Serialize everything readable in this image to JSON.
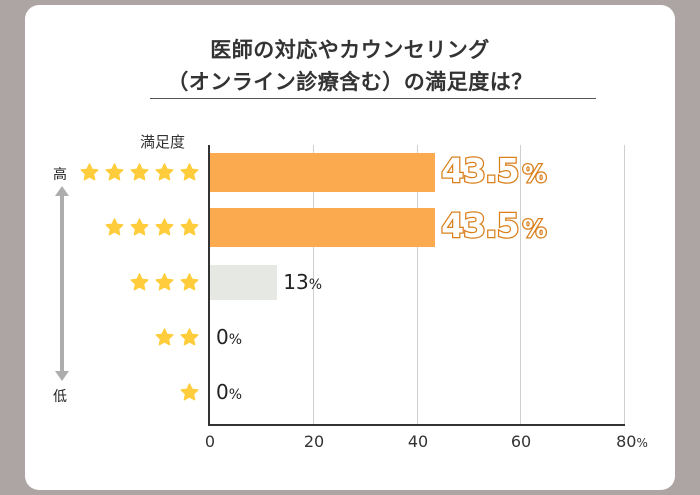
{
  "title": {
    "line1": "医師の対応やカウンセリング",
    "line2": "（オンライン診療含む）の満足度は？"
  },
  "axis": {
    "ylabel": "満足度",
    "high_label": "高",
    "low_label": "低",
    "xticks": [
      "0",
      "20",
      "40",
      "60",
      "80"
    ],
    "xtick_unit": "%"
  },
  "colors": {
    "highlight_bar": "#FBAA50",
    "normal_bar": "#E6E8E3",
    "highlight_text_stroke": "#D97F1C",
    "star": "#FFCD3C",
    "background": "#ADA4A4"
  },
  "rows": [
    {
      "stars": 5,
      "value": "43.5",
      "unit": "%"
    },
    {
      "stars": 4,
      "value": "43.5",
      "unit": "%"
    },
    {
      "stars": 3,
      "value": "13",
      "unit": "%"
    },
    {
      "stars": 2,
      "value": "0",
      "unit": "%"
    },
    {
      "stars": 1,
      "value": "0",
      "unit": "%"
    }
  ],
  "chart_data": {
    "type": "bar",
    "orientation": "horizontal",
    "title": "医師の対応やカウンセリング（オンライン診療含む）の満足度は？",
    "categories": [
      "★★★★★",
      "★★★★",
      "★★★",
      "★★",
      "★"
    ],
    "values": [
      43.5,
      43.5,
      13,
      0,
      0
    ],
    "xlabel": "%",
    "ylabel": "満足度",
    "xlim": [
      0,
      80
    ],
    "xticks": [
      0,
      20,
      40,
      60,
      80
    ],
    "grid": true,
    "annotations": [
      "高",
      "低"
    ]
  }
}
